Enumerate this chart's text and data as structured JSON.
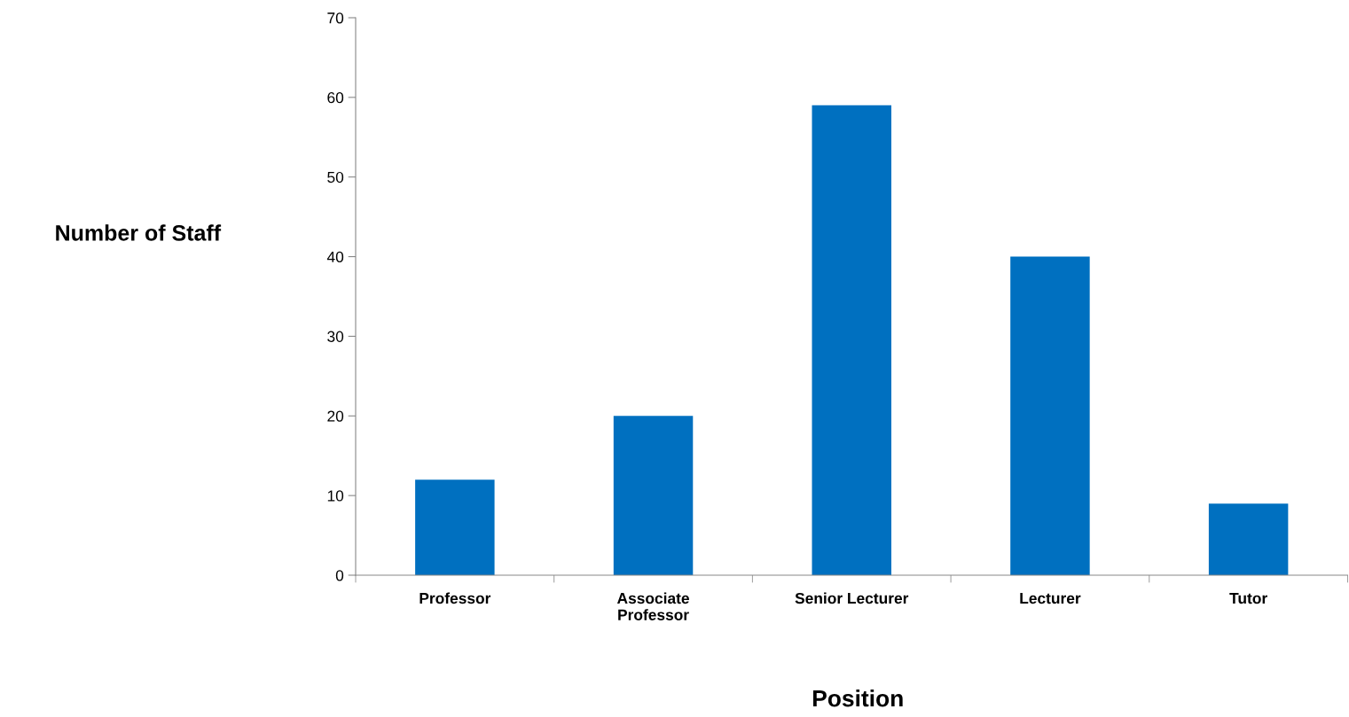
{
  "chart_data": {
    "type": "bar",
    "xlabel": "Position",
    "ylabel": "Number of Staff",
    "categories": [
      "Professor",
      "Associate\nProfessor",
      "Senior Lecturer",
      "Lecturer",
      "Tutor"
    ],
    "values": [
      12,
      20,
      59,
      40,
      9
    ],
    "color": "#0070c0",
    "ylim": [
      0,
      70
    ],
    "yticks": [
      0,
      10,
      20,
      30,
      40,
      50,
      60,
      70
    ]
  }
}
